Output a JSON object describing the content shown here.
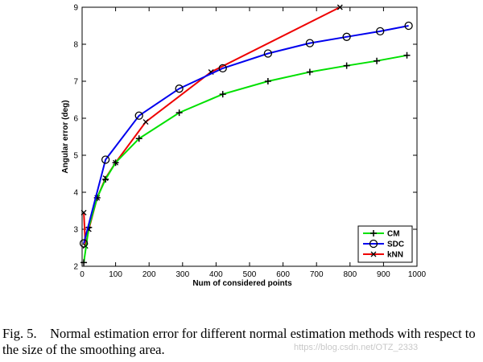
{
  "chart_data": {
    "type": "line",
    "xlabel": "Num of considered points",
    "ylabel": "Angular error (deg)",
    "xlim": [
      0,
      1000
    ],
    "ylim": [
      2,
      9
    ],
    "xticks": [
      "0",
      "100",
      "200",
      "300",
      "400",
      "500",
      "600",
      "700",
      "800",
      "900",
      "1000"
    ],
    "yticks": [
      "2",
      "3",
      "4",
      "5",
      "6",
      "7",
      "8",
      "9"
    ],
    "grid": false,
    "legend_position": "bottom-right",
    "series": [
      {
        "name": "CM",
        "color": "#00e000",
        "marker": "plus",
        "points": [
          [
            5,
            2.1
          ],
          [
            20,
            3.05
          ],
          [
            45,
            3.85
          ],
          [
            70,
            4.35
          ],
          [
            100,
            4.8
          ],
          [
            170,
            5.45
          ],
          [
            290,
            6.15
          ],
          [
            420,
            6.65
          ],
          [
            555,
            7.0
          ],
          [
            680,
            7.25
          ],
          [
            790,
            7.42
          ],
          [
            880,
            7.55
          ],
          [
            970,
            7.7
          ]
        ]
      },
      {
        "name": "SDC",
        "color": "#0000ee",
        "marker": "circle",
        "points": [
          [
            5,
            2.62
          ],
          [
            70,
            4.88
          ],
          [
            170,
            6.07
          ],
          [
            290,
            6.8
          ],
          [
            420,
            7.35
          ],
          [
            555,
            7.75
          ],
          [
            680,
            8.03
          ],
          [
            790,
            8.2
          ],
          [
            890,
            8.35
          ],
          [
            975,
            8.5
          ]
        ]
      },
      {
        "name": "kNN",
        "color": "#ee0000",
        "marker": "x",
        "points": [
          [
            5,
            3.45
          ],
          [
            10,
            2.55
          ],
          [
            20,
            3.0
          ],
          [
            45,
            3.85
          ],
          [
            70,
            4.38
          ],
          [
            100,
            4.8
          ],
          [
            190,
            5.9
          ],
          [
            385,
            7.25
          ],
          [
            770,
            9.0
          ]
        ]
      }
    ]
  },
  "caption": {
    "label": "Fig. 5.",
    "text": "Normal estimation error for different normal estimation methods with respect to the size of the smoothing area."
  },
  "watermark": "https://blog.csdn.net/OTZ_2333"
}
